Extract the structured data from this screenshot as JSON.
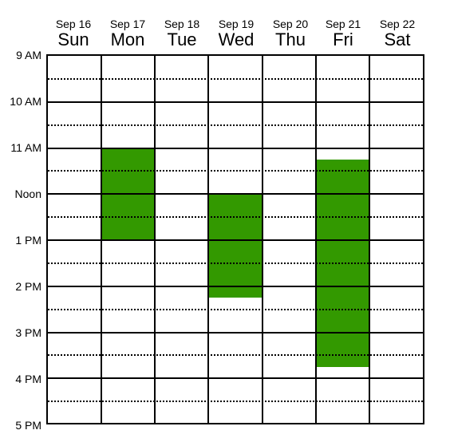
{
  "days": [
    {
      "date": "Sep 16",
      "name": "Sun"
    },
    {
      "date": "Sep 17",
      "name": "Mon"
    },
    {
      "date": "Sep 18",
      "name": "Tue"
    },
    {
      "date": "Sep 19",
      "name": "Wed"
    },
    {
      "date": "Sep 20",
      "name": "Thu"
    },
    {
      "date": "Sep 21",
      "name": "Fri"
    },
    {
      "date": "Sep 22",
      "name": "Sat"
    }
  ],
  "time_labels": [
    "9 AM",
    "10 AM",
    "11 AM",
    "Noon",
    "1 PM",
    "2 PM",
    "3 PM",
    "4 PM",
    "5 PM"
  ],
  "view": {
    "start_hour": 9,
    "end_hour": 17
  },
  "event_color": "#339900",
  "events": [
    {
      "day": "Mon",
      "start_hour": 11.0,
      "end_hour": 13.0
    },
    {
      "day": "Wed",
      "start_hour": 12.0,
      "end_hour": 14.25
    },
    {
      "day": "Fri",
      "start_hour": 11.25,
      "end_hour": 15.75
    }
  ]
}
